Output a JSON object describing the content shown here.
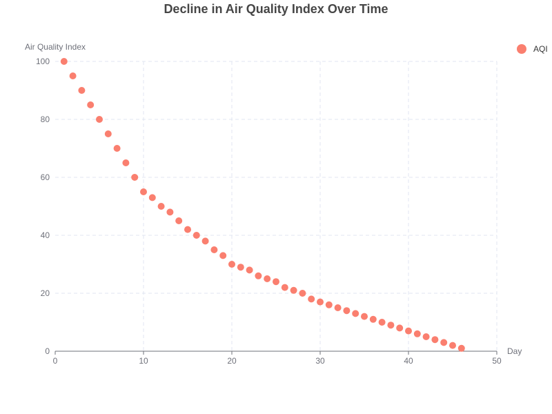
{
  "colors": {
    "series": "#fa7f6f"
  },
  "chart_data": {
    "type": "scatter",
    "title": "Decline in Air Quality Index Over Time",
    "xlabel": "Day",
    "ylabel": "Air Quality Index",
    "xlim": [
      0,
      50
    ],
    "ylim": [
      0,
      100
    ],
    "xticks": [
      "0",
      "10",
      "20",
      "30",
      "40",
      "50"
    ],
    "yticks": [
      "0",
      "20",
      "40",
      "60",
      "80",
      "100"
    ],
    "grid": true,
    "legend_position": "top-right",
    "series": [
      {
        "name": "AQI",
        "x": [
          1,
          2,
          3,
          4,
          5,
          6,
          7,
          8,
          9,
          10,
          11,
          12,
          13,
          14,
          15,
          16,
          17,
          18,
          19,
          20,
          21,
          22,
          23,
          24,
          25,
          26,
          27,
          28,
          29,
          30,
          31,
          32,
          33,
          34,
          35,
          36,
          37,
          38,
          39,
          40,
          41,
          42,
          43,
          44,
          45,
          46
        ],
        "y": [
          100,
          95,
          90,
          85,
          80,
          75,
          70,
          65,
          60,
          55,
          53,
          50,
          48,
          45,
          42,
          40,
          38,
          35,
          33,
          30,
          29,
          28,
          26,
          25,
          24,
          22,
          21,
          20,
          18,
          17,
          16,
          15,
          14,
          13,
          12,
          11,
          10,
          9,
          8,
          7,
          6,
          5,
          4,
          3,
          2,
          1
        ]
      }
    ]
  }
}
